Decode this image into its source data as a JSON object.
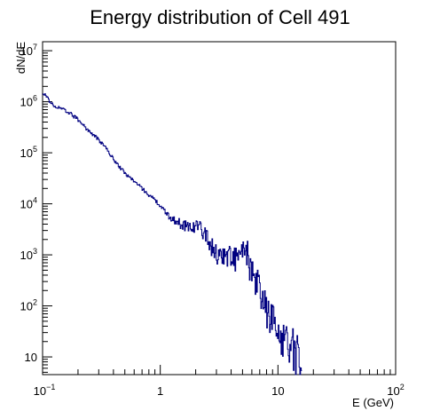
{
  "chart_data": {
    "type": "line",
    "style": "step-histogram",
    "title": "Energy distribution of Cell 491",
    "xlabel": "E (GeV)",
    "ylabel": "dN/dE",
    "xscale": "log",
    "yscale": "log",
    "xlim": [
      0.1,
      100
    ],
    "ylim": [
      4.5,
      15000000
    ],
    "grid": false,
    "legend": "none",
    "line_color": "#000080",
    "x_ticks": [
      {
        "value": 0.1,
        "base": "10",
        "exp": "−1"
      },
      {
        "value": 1,
        "base": "1",
        "exp": ""
      },
      {
        "value": 10,
        "base": "10",
        "exp": ""
      },
      {
        "value": 100,
        "base": "10",
        "exp": "2"
      }
    ],
    "y_ticks": [
      {
        "value": 10,
        "base": "10",
        "exp": ""
      },
      {
        "value": 100,
        "base": "10",
        "exp": "2"
      },
      {
        "value": 1000,
        "base": "10",
        "exp": "3"
      },
      {
        "value": 10000,
        "base": "10",
        "exp": "4"
      },
      {
        "value": 100000,
        "base": "10",
        "exp": "5"
      },
      {
        "value": 1000000,
        "base": "10",
        "exp": "6"
      },
      {
        "value": 10000000,
        "base": "10",
        "exp": "7"
      }
    ],
    "series": [
      {
        "x": [
          0.1,
          0.11,
          0.12,
          0.13,
          0.15,
          0.17,
          0.2,
          0.25,
          0.3,
          0.35,
          0.4,
          0.5,
          0.6,
          0.7,
          0.8,
          0.9,
          1.0,
          1.2,
          1.5,
          1.8,
          2.0,
          2.3,
          2.6,
          3.0,
          3.5,
          4.0,
          4.5,
          5.0,
          5.5,
          6.0,
          7.0,
          8.0,
          9.0,
          10,
          12,
          14,
          16
        ],
        "y": [
          1500000,
          1200000,
          900000,
          800000,
          700000,
          600000,
          450000,
          260000,
          180000,
          120000,
          75000,
          40000,
          28000,
          20000,
          15000,
          12000,
          9000,
          5500,
          4000,
          3500,
          3800,
          3000,
          1800,
          1000,
          1000,
          900,
          800,
          1100,
          1000,
          400,
          200,
          80,
          50,
          30,
          20,
          12,
          8
        ]
      }
    ]
  }
}
